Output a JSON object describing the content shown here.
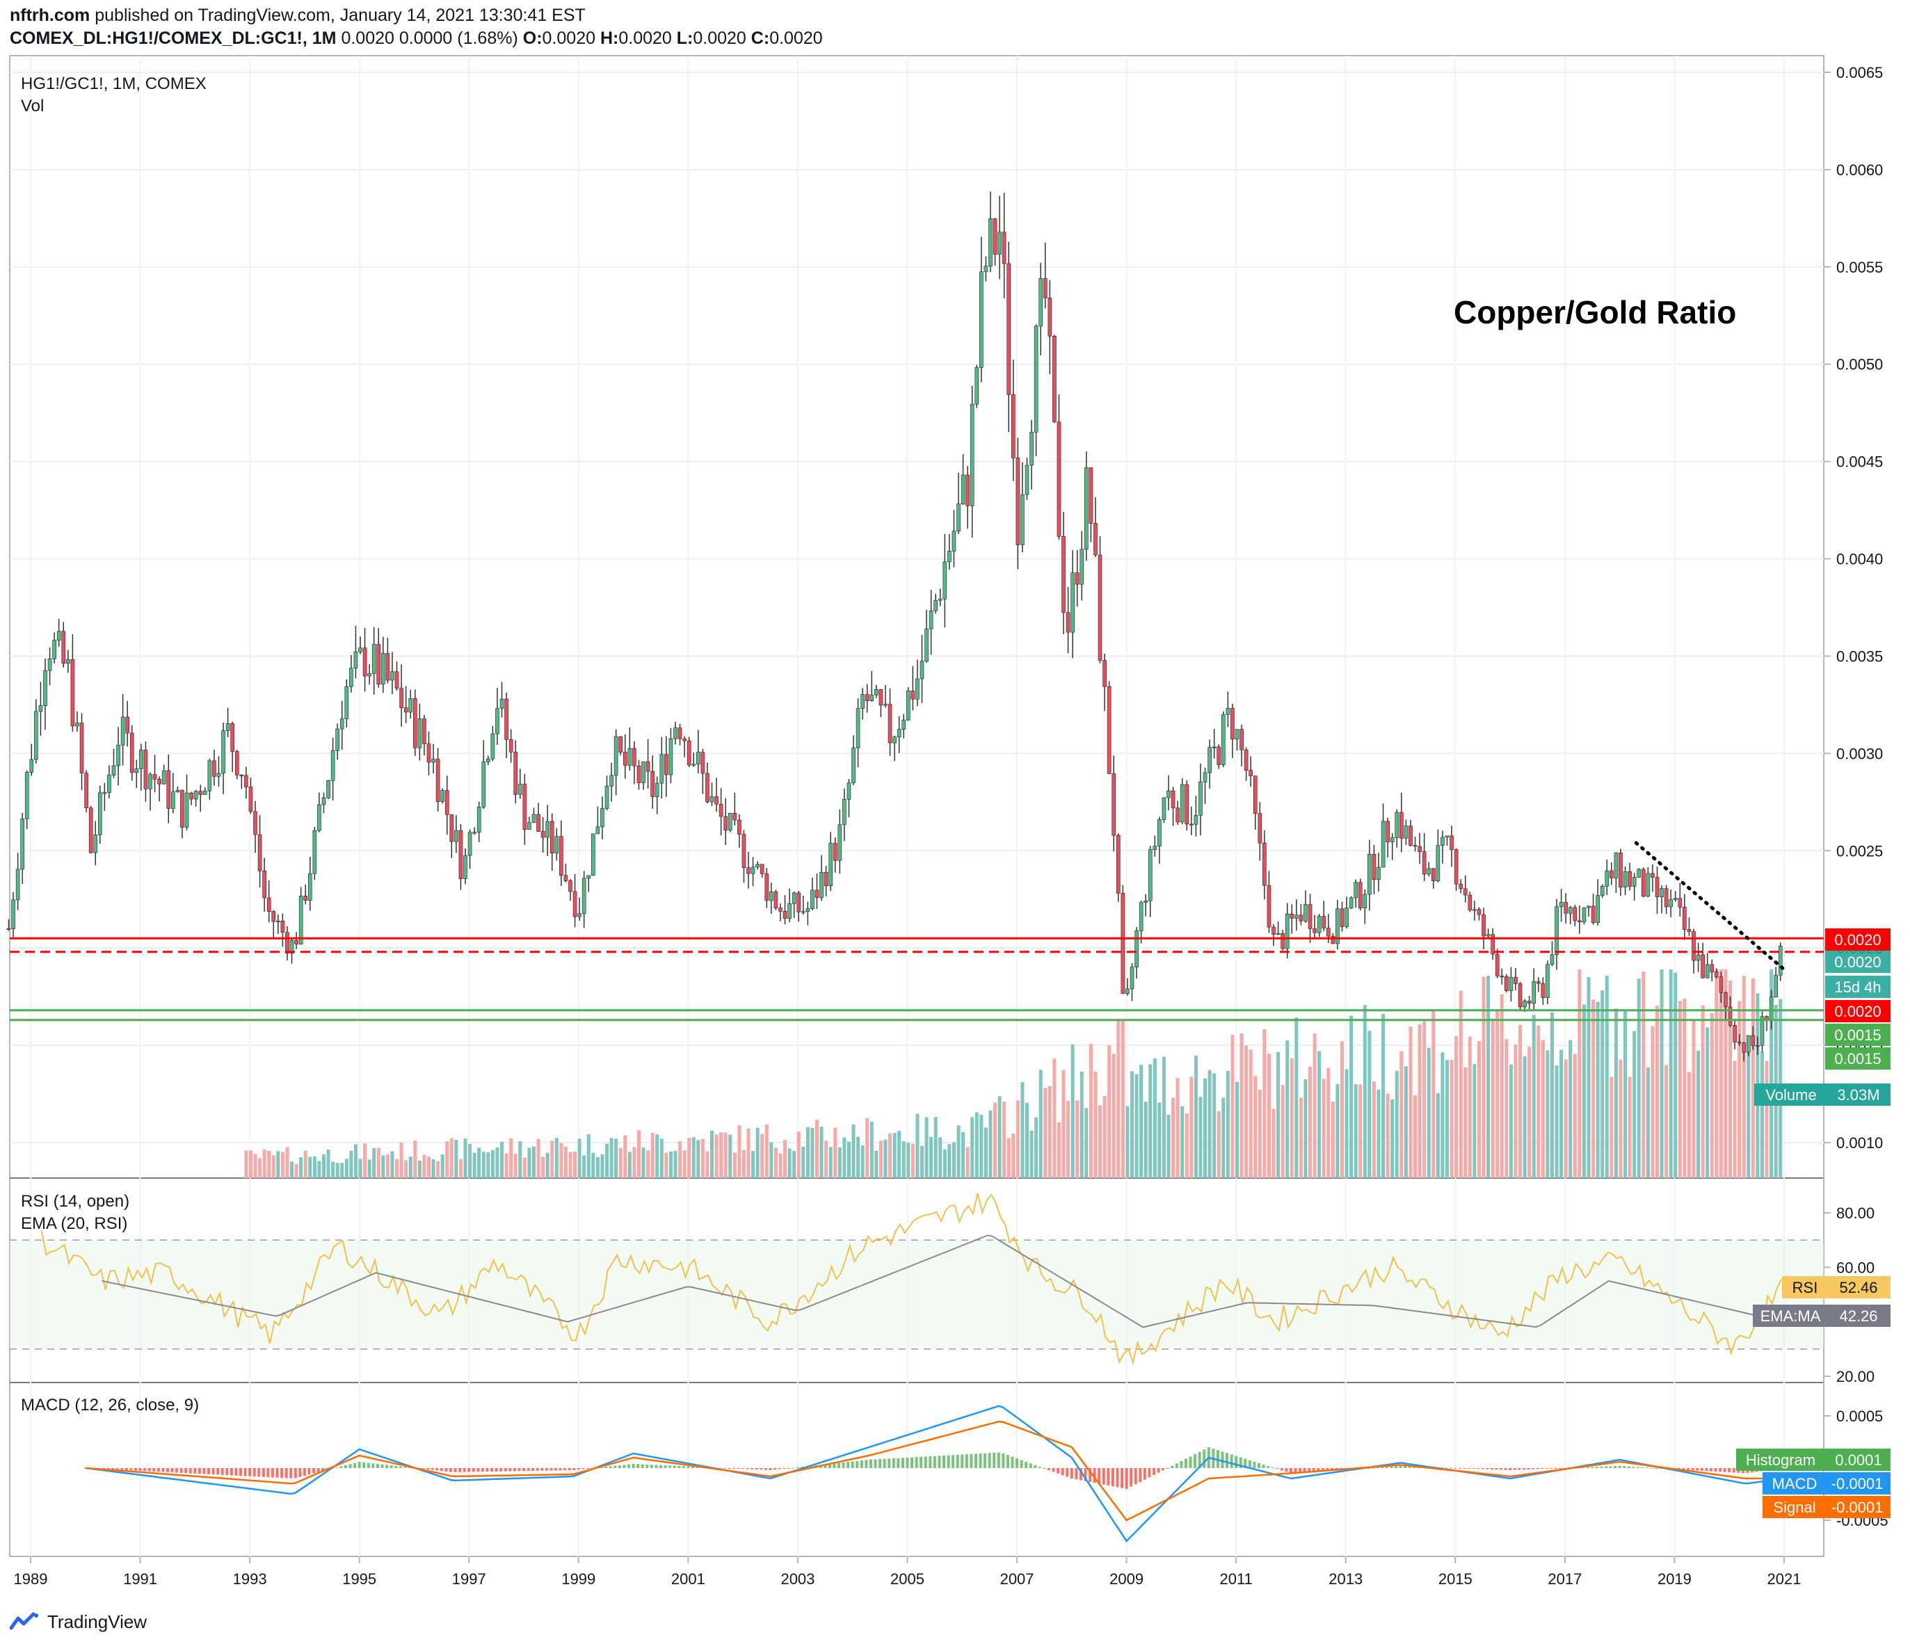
{
  "header": {
    "publisher": "nftrh.com",
    "published_text": "published on TradingView.com, January 14, 2021 13:30:41 EST",
    "symbol": "COMEX_DL:HG1!/COMEX_DL:GC1!, 1M",
    "change": "0.0020 0.0000 (1.68%)",
    "o_label": "O:",
    "o_value": "0.0020",
    "h_label": "H:",
    "h_value": "0.0020",
    "l_label": "L:",
    "l_value": "0.0020",
    "c_label": "C:",
    "c_value": "0.0020"
  },
  "colors": {
    "up": "#26a69a",
    "down": "#ef5350",
    "candle_up": "#53b987",
    "candle_down": "#eb4d5c",
    "vol_up": "#7fc6bf",
    "vol_down": "#f7a9a7",
    "red_line": "#ff0000",
    "green_line": "#4caf50",
    "rsi": "#f0c24b",
    "rsi_ema": "#8a8a8a",
    "macd": "#2196f3",
    "signal": "#ff6d00",
    "hist_up": "#4caf50",
    "hist_down": "#f44336"
  },
  "main_pane": {
    "label": "HG1!/GC1!, 1M, COMEX",
    "vol_label": "Vol",
    "annotation": "Copper/Gold Ratio",
    "y_ticks": [
      "0.0065",
      "0.0060",
      "0.0055",
      "0.0050",
      "0.0045",
      "0.0040",
      "0.0035",
      "0.0030",
      "0.0025",
      "0.0020",
      "0.0015",
      "0.0010"
    ],
    "badges": {
      "red_top": "0.0020",
      "last_price": "0.0020",
      "countdown": "15d 4h",
      "red_mid": "0.0020",
      "green1": "0.0015",
      "green2": "0.0015",
      "volume_label": "Volume",
      "volume_value": "3.03M"
    }
  },
  "rsi_pane": {
    "label1": "RSI (14, open)",
    "label2": "EMA (20, RSI)",
    "y_ticks": [
      "80.00",
      "60.00",
      "20.00"
    ],
    "rsi_badge_label": "RSI",
    "rsi_badge_value": "52.46",
    "ema_badge_label": "EMA:MA",
    "ema_badge_value": "42.26"
  },
  "macd_pane": {
    "label": "MACD (12, 26, close, 9)",
    "y_ticks": [
      "0.0005",
      "-0.0005"
    ],
    "hist_label": "Histogram",
    "hist_value": "0.0001",
    "macd_label": "MACD",
    "macd_value": "-0.0001",
    "signal_label": "Signal",
    "signal_value": "-0.0001"
  },
  "x_ticks": [
    "1989",
    "1991",
    "1993",
    "1995",
    "1997",
    "1999",
    "2001",
    "2003",
    "2005",
    "2007",
    "2009",
    "2011",
    "2013",
    "2015",
    "2017",
    "2019",
    "2021"
  ],
  "footer": {
    "brand": "TradingView"
  },
  "chart_data": {
    "type": "candlestick",
    "title": "Copper/Gold Ratio",
    "symbol": "HG1!/GC1!, 1M, COMEX",
    "frequency": "monthly",
    "x_range": [
      "1988-07",
      "2021-01"
    ],
    "y_range": [
      0.0008,
      0.0066
    ],
    "grid": true,
    "price_key_points": [
      {
        "date": "1988.6",
        "close": 0.0021
      },
      {
        "date": "1988.9",
        "close": 0.0028
      },
      {
        "date": "1989.3",
        "close": 0.0036
      },
      {
        "date": "1989.7",
        "close": 0.0034
      },
      {
        "date": "1990.1",
        "close": 0.0025
      },
      {
        "date": "1990.6",
        "close": 0.0031
      },
      {
        "date": "1991.2",
        "close": 0.0029
      },
      {
        "date": "1991.8",
        "close": 0.0027
      },
      {
        "date": "1992.6",
        "close": 0.0031
      },
      {
        "date": "1992.9",
        "close": 0.0029
      },
      {
        "date": "1993.3",
        "close": 0.0022
      },
      {
        "date": "1993.8",
        "close": 0.002
      },
      {
        "date": "1994.3",
        "close": 0.0027
      },
      {
        "date": "1994.7",
        "close": 0.0033
      },
      {
        "date": "1995.1",
        "close": 0.0035
      },
      {
        "date": "1995.7",
        "close": 0.0033
      },
      {
        "date": "1996.3",
        "close": 0.003
      },
      {
        "date": "1996.9",
        "close": 0.0024
      },
      {
        "date": "1997.5",
        "close": 0.0033
      },
      {
        "date": "1998.0",
        "close": 0.0027
      },
      {
        "date": "1998.6",
        "close": 0.0025
      },
      {
        "date": "1999.0",
        "close": 0.0022
      },
      {
        "date": "1999.6",
        "close": 0.003
      },
      {
        "date": "2000.4",
        "close": 0.0028
      },
      {
        "date": "2000.8",
        "close": 0.0032
      },
      {
        "date": "2001.5",
        "close": 0.0027
      },
      {
        "date": "2002.0",
        "close": 0.0025
      },
      {
        "date": "2002.7",
        "close": 0.0022
      },
      {
        "date": "2003.2",
        "close": 0.0022
      },
      {
        "date": "2003.8",
        "close": 0.0026
      },
      {
        "date": "2004.2",
        "close": 0.0033
      },
      {
        "date": "2004.7",
        "close": 0.0031
      },
      {
        "date": "2005.2",
        "close": 0.0034
      },
      {
        "date": "2005.7",
        "close": 0.004
      },
      {
        "date": "2006.1",
        "close": 0.0044
      },
      {
        "date": "2006.4",
        "close": 0.0055
      },
      {
        "date": "2006.7",
        "close": 0.0057
      },
      {
        "date": "2007.0",
        "close": 0.0042
      },
      {
        "date": "2007.5",
        "close": 0.0054
      },
      {
        "date": "2007.9",
        "close": 0.0036
      },
      {
        "date": "2008.3",
        "close": 0.0044
      },
      {
        "date": "2008.8",
        "close": 0.0025
      },
      {
        "date": "2008.95",
        "close": 0.0016
      },
      {
        "date": "2009.2",
        "close": 0.0021
      },
      {
        "date": "2009.7",
        "close": 0.0028
      },
      {
        "date": "2010.2",
        "close": 0.0027
      },
      {
        "date": "2010.9",
        "close": 0.0032
      },
      {
        "date": "2011.2",
        "close": 0.0029
      },
      {
        "date": "2011.7",
        "close": 0.002
      },
      {
        "date": "2012.2",
        "close": 0.0022
      },
      {
        "date": "2012.8",
        "close": 0.0021
      },
      {
        "date": "2013.3",
        "close": 0.0023
      },
      {
        "date": "2013.9",
        "close": 0.0027
      },
      {
        "date": "2014.4",
        "close": 0.0024
      },
      {
        "date": "2014.9",
        "close": 0.0025
      },
      {
        "date": "2015.3",
        "close": 0.0022
      },
      {
        "date": "2015.8",
        "close": 0.0019
      },
      {
        "date": "2016.2",
        "close": 0.0017
      },
      {
        "date": "2016.6",
        "close": 0.0018
      },
      {
        "date": "2016.9",
        "close": 0.0022
      },
      {
        "date": "2017.5",
        "close": 0.0022
      },
      {
        "date": "2017.9",
        "close": 0.0024
      },
      {
        "date": "2018.5",
        "close": 0.0023
      },
      {
        "date": "2019.0",
        "close": 0.0022
      },
      {
        "date": "2019.5",
        "close": 0.0019
      },
      {
        "date": "2019.8",
        "close": 0.0018
      },
      {
        "date": "2020.2",
        "close": 0.0015
      },
      {
        "date": "2020.5",
        "close": 0.0015
      },
      {
        "date": "2020.8",
        "close": 0.0018
      },
      {
        "date": "2021.0",
        "close": 0.002
      }
    ],
    "horizontal_lines": [
      {
        "value": 0.00205,
        "style": "solid",
        "color": "#ff0000"
      },
      {
        "value": 0.00198,
        "style": "dashed",
        "color": "#ff0000"
      },
      {
        "value": 0.00168,
        "style": "solid",
        "color": "#4caf50"
      },
      {
        "value": 0.00163,
        "style": "solid",
        "color": "#4caf50"
      }
    ],
    "trendline": {
      "from": {
        "date": "2018.3",
        "value": 0.00254
      },
      "to": {
        "date": "2021.0",
        "value": 0.00189
      },
      "style": "dotted",
      "color": "#000000"
    },
    "rsi": {
      "y_range": [
        20,
        90
      ],
      "bands": [
        30,
        70
      ],
      "key_points": [
        {
          "date": "1989.2",
          "value": 70
        },
        {
          "date": "1990.3",
          "value": 55
        },
        {
          "date": "1991.5",
          "value": 58
        },
        {
          "date": "1993.4",
          "value": 35
        },
        {
          "date": "1994.6",
          "value": 68
        },
        {
          "date": "1996.5",
          "value": 42
        },
        {
          "date": "1997.5",
          "value": 62
        },
        {
          "date": "1999.0",
          "value": 35
        },
        {
          "date": "1999.7",
          "value": 63
        },
        {
          "date": "2001.0",
          "value": 60
        },
        {
          "date": "2002.5",
          "value": 40
        },
        {
          "date": "2004.2",
          "value": 68
        },
        {
          "date": "2006.5",
          "value": 85
        },
        {
          "date": "2007.3",
          "value": 60
        },
        {
          "date": "2008.3",
          "value": 48
        },
        {
          "date": "2009.0",
          "value": 25
        },
        {
          "date": "2010.8",
          "value": 55
        },
        {
          "date": "2011.7",
          "value": 40
        },
        {
          "date": "2013.8",
          "value": 60
        },
        {
          "date": "2015.8",
          "value": 35
        },
        {
          "date": "2017.0",
          "value": 58
        },
        {
          "date": "2018.0",
          "value": 62
        },
        {
          "date": "2020.1",
          "value": 31
        },
        {
          "date": "2021.0",
          "value": 52.46
        }
      ],
      "ema_key_points": [
        {
          "date": "1990.3",
          "value": 55
        },
        {
          "date": "1993.5",
          "value": 42
        },
        {
          "date": "1995.3",
          "value": 58
        },
        {
          "date": "1998.8",
          "value": 40
        },
        {
          "date": "2001.0",
          "value": 53
        },
        {
          "date": "2003.0",
          "value": 44
        },
        {
          "date": "2006.5",
          "value": 72
        },
        {
          "date": "2009.3",
          "value": 38
        },
        {
          "date": "2011.2",
          "value": 47
        },
        {
          "date": "2013.5",
          "value": 46
        },
        {
          "date": "2016.5",
          "value": 38
        },
        {
          "date": "2017.8",
          "value": 55
        },
        {
          "date": "2020.5",
          "value": 42.26
        }
      ]
    },
    "macd": {
      "y_range": [
        -0.0009,
        0.0007
      ],
      "key_points": [
        {
          "date": "1990.0",
          "macd": 0.0,
          "signal": 0.0
        },
        {
          "date": "1993.8",
          "macd": -0.00025,
          "signal": -0.00015
        },
        {
          "date": "1995.0",
          "macd": 0.00018,
          "signal": 0.00012
        },
        {
          "date": "1996.7",
          "macd": -0.00012,
          "signal": -8e-05
        },
        {
          "date": "1998.9",
          "macd": -8e-05,
          "signal": -6e-05
        },
        {
          "date": "2000.0",
          "macd": 0.00014,
          "signal": 0.0001
        },
        {
          "date": "2002.5",
          "macd": -0.0001,
          "signal": -8e-05
        },
        {
          "date": "2004.3",
          "macd": 0.0002,
          "signal": 0.00012
        },
        {
          "date": "2006.7",
          "macd": 0.0006,
          "signal": 0.00045
        },
        {
          "date": "2008.0",
          "macd": 0.0001,
          "signal": 0.0002
        },
        {
          "date": "2009.0",
          "macd": -0.0007,
          "signal": -0.0005
        },
        {
          "date": "2010.5",
          "macd": 0.0001,
          "signal": -0.0001
        },
        {
          "date": "2012.0",
          "macd": -0.0001,
          "signal": -5e-05
        },
        {
          "date": "2014.0",
          "macd": 5e-05,
          "signal": 3e-05
        },
        {
          "date": "2016.0",
          "macd": -0.0001,
          "signal": -8e-05
        },
        {
          "date": "2018.0",
          "macd": 8e-05,
          "signal": 6e-05
        },
        {
          "date": "2020.3",
          "macd": -0.00015,
          "signal": -0.0001
        },
        {
          "date": "2021.0",
          "macd": -0.0001,
          "signal": -0.0001
        }
      ]
    }
  }
}
